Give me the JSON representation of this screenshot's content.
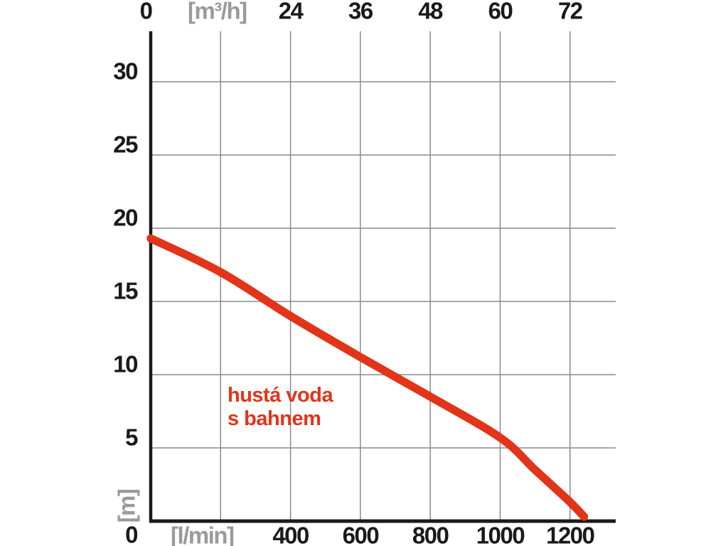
{
  "colors": {
    "background": "#ffffff",
    "grid": "#8a8a8a",
    "axis": "#1a1a1a",
    "tick_label": "#1a1a1a",
    "unit_label": "#9a9a9a",
    "curve": "#e23419"
  },
  "chart_data": {
    "type": "line",
    "title": "",
    "grid": true,
    "legend_position": "none",
    "x_range_lmin": [
      0,
      1330
    ],
    "x_range_m3h": [
      0,
      80
    ],
    "y_range_m": [
      0,
      33.4
    ],
    "top_axis": {
      "unit_label": "[m³/h]",
      "ticks": [
        {
          "label": "0",
          "flow": 0
        },
        {
          "label": "[m³/h]",
          "flow": 200,
          "is_unit": true
        },
        {
          "label": "24",
          "flow": 400
        },
        {
          "label": "36",
          "flow": 600
        },
        {
          "label": "48",
          "flow": 800
        },
        {
          "label": "60",
          "flow": 1000
        },
        {
          "label": "72",
          "flow": 1200
        }
      ]
    },
    "bottom_axis": {
      "unit_label": "[l/min]",
      "ticks": [
        {
          "label": "[l/min]",
          "flow": 200,
          "is_unit": true
        },
        {
          "label": "400",
          "flow": 400
        },
        {
          "label": "600",
          "flow": 600
        },
        {
          "label": "800",
          "flow": 800
        },
        {
          "label": "1000",
          "flow": 1000
        },
        {
          "label": "1200",
          "flow": 1200
        }
      ]
    },
    "left_axis": {
      "unit_label": "[m]",
      "ticks": [
        {
          "label": "30",
          "head": 30
        },
        {
          "label": "25",
          "head": 25
        },
        {
          "label": "20",
          "head": 20
        },
        {
          "label": "15",
          "head": 15
        },
        {
          "label": "10",
          "head": 10
        },
        {
          "label": "5",
          "head": 5
        },
        {
          "label": "0",
          "head": 0
        }
      ]
    },
    "series": [
      {
        "name": "hustá voda s bahnem",
        "color": "#e23419",
        "points_flow_lmin_head_m": [
          [
            0,
            19.3
          ],
          [
            200,
            17.0
          ],
          [
            400,
            14.0
          ],
          [
            600,
            11.2
          ],
          [
            800,
            8.5
          ],
          [
            1000,
            5.7
          ],
          [
            1100,
            3.5
          ],
          [
            1200,
            1.3
          ],
          [
            1240,
            0.3
          ]
        ]
      }
    ],
    "annotation": {
      "line1": "hustá voda",
      "line2": "s bahnem",
      "color": "#e23419"
    }
  }
}
